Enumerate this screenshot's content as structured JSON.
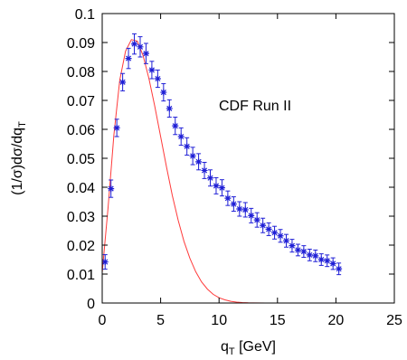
{
  "chart_data": {
    "type": "scatter",
    "xlabel_main": "q",
    "xlabel_sub": "T",
    "xlabel_tail": " [GeV]",
    "ylabel_main": "(1/σ)dσ/dq",
    "ylabel_sub": "T",
    "annotation": "CDF Run II",
    "xlim": [
      0,
      25
    ],
    "ylim": [
      0,
      0.1
    ],
    "x_ticks": [
      "0",
      "5",
      "10",
      "15",
      "20",
      "25"
    ],
    "y_ticks": [
      "0",
      "0.01",
      "0.02",
      "0.03",
      "0.04",
      "0.05",
      "0.06",
      "0.07",
      "0.08",
      "0.09",
      "0.1"
    ],
    "grid": false,
    "series": [
      {
        "kind": "points_with_errorbars",
        "marker": "asterisk",
        "color": "#1f1fd6",
        "x": [
          0.25,
          0.75,
          1.25,
          1.75,
          2.25,
          2.75,
          3.25,
          3.75,
          4.25,
          4.75,
          5.25,
          5.75,
          6.25,
          6.75,
          7.25,
          7.75,
          8.25,
          8.75,
          9.25,
          9.75,
          10.25,
          10.75,
          11.25,
          11.75,
          12.25,
          12.75,
          13.25,
          13.75,
          14.25,
          14.75,
          15.25,
          15.75,
          16.25,
          16.75,
          17.25,
          17.75,
          18.25,
          18.75,
          19.25,
          19.75,
          20.25
        ],
        "y": [
          0.0142,
          0.0395,
          0.0605,
          0.0763,
          0.0845,
          0.0895,
          0.0885,
          0.0862,
          0.0805,
          0.0775,
          0.0728,
          0.0672,
          0.0612,
          0.0575,
          0.0541,
          0.0508,
          0.0488,
          0.0458,
          0.0432,
          0.0405,
          0.0398,
          0.0362,
          0.0342,
          0.0325,
          0.0322,
          0.0302,
          0.0287,
          0.0268,
          0.0255,
          0.0243,
          0.0232,
          0.0215,
          0.0198,
          0.0183,
          0.0178,
          0.0166,
          0.0163,
          0.015,
          0.0146,
          0.0136,
          0.0118
        ],
        "err": [
          0.0025,
          0.003,
          0.003,
          0.003,
          0.0035,
          0.0035,
          0.0035,
          0.0035,
          0.003,
          0.003,
          0.003,
          0.003,
          0.003,
          0.003,
          0.003,
          0.003,
          0.0028,
          0.0028,
          0.0028,
          0.0028,
          0.0028,
          0.0025,
          0.0025,
          0.0025,
          0.0025,
          0.0025,
          0.0025,
          0.0025,
          0.0022,
          0.0022,
          0.0022,
          0.0022,
          0.0022,
          0.002,
          0.002,
          0.002,
          0.002,
          0.002,
          0.002,
          0.002,
          0.002
        ]
      },
      {
        "kind": "curve",
        "color": "#ff3b3b",
        "x": [
          0,
          0.5,
          1,
          1.5,
          2,
          2.5,
          3,
          3.5,
          4,
          4.5,
          5,
          5.5,
          6,
          6.5,
          7,
          7.5,
          8,
          8.5,
          9,
          9.5,
          10,
          10.5,
          11,
          11.5,
          12,
          12.5,
          13,
          14,
          15,
          16,
          17,
          18,
          19,
          20,
          21,
          22,
          23,
          24,
          25
        ],
        "y": [
          0.0105,
          0.033,
          0.058,
          0.077,
          0.087,
          0.091,
          0.0905,
          0.0855,
          0.0775,
          0.068,
          0.0575,
          0.047,
          0.0372,
          0.0286,
          0.0213,
          0.0155,
          0.0108,
          0.0073,
          0.0048,
          0.003,
          0.0018,
          0.0011,
          0.0006,
          0.0003,
          0.00015,
          7e-05,
          3e-05,
          0,
          0,
          0,
          0,
          0,
          0,
          0,
          0,
          0,
          0,
          0,
          0
        ]
      }
    ]
  }
}
